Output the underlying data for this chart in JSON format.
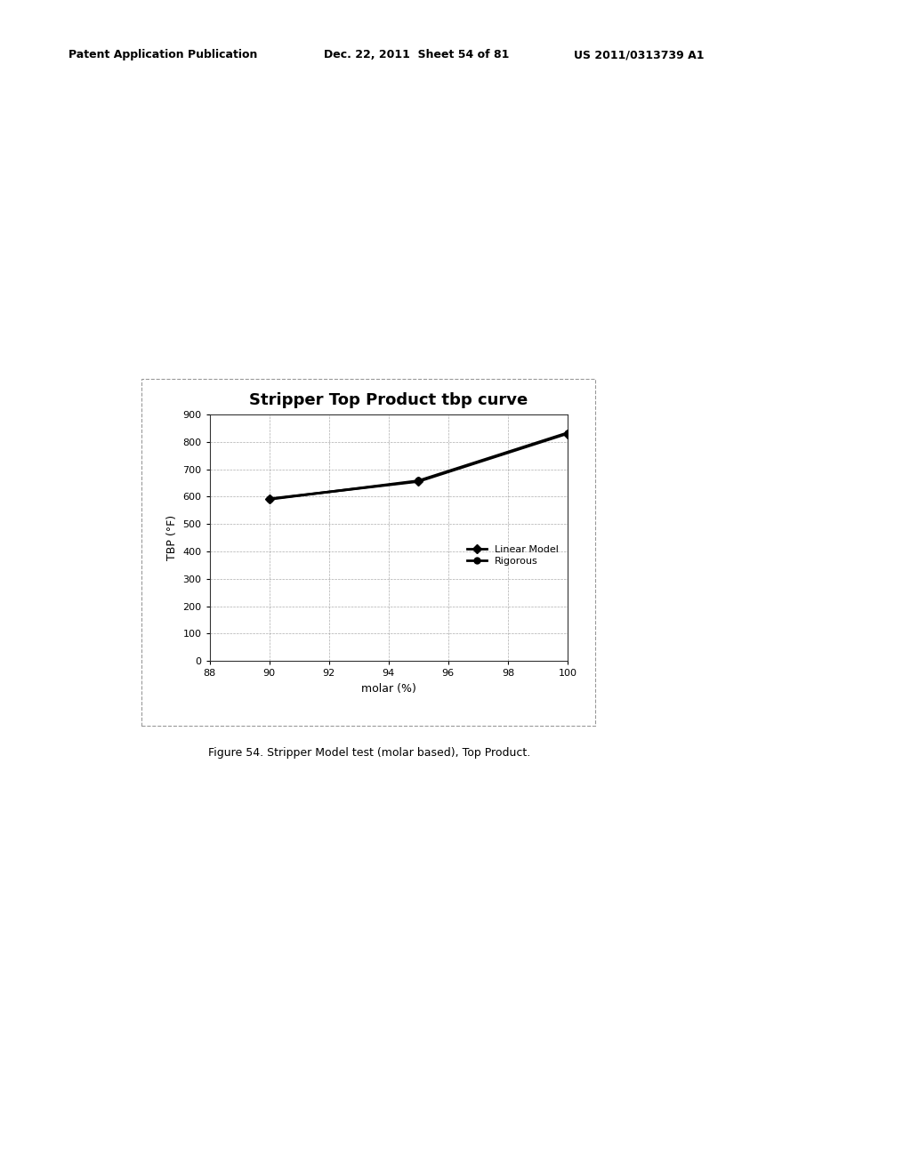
{
  "title": "Stripper Top Product tbp curve",
  "xlabel": "molar (%)",
  "ylabel": "TBP (°F)",
  "xlim": [
    88,
    100
  ],
  "ylim": [
    0,
    900
  ],
  "xticks": [
    88,
    90,
    92,
    94,
    96,
    98,
    100
  ],
  "yticks": [
    0,
    100,
    200,
    300,
    400,
    500,
    600,
    700,
    800,
    900
  ],
  "linear_model": {
    "x": [
      90,
      95,
      100
    ],
    "y": [
      592,
      655,
      830
    ],
    "label": "Linear Model",
    "color": "#000000",
    "marker": "D",
    "linewidth": 2.0,
    "markersize": 5
  },
  "rigorous": {
    "x": [
      90,
      95,
      100
    ],
    "y": [
      590,
      658,
      833
    ],
    "label": "Rigorous",
    "color": "#000000",
    "marker": "o",
    "linewidth": 2.0,
    "markersize": 5
  },
  "header_left": "Patent Application Publication",
  "header_mid": "Dec. 22, 2011  Sheet 54 of 81",
  "header_right": "US 2011/0313739 A1",
  "caption": "Figure 54. Stripper Model test (molar based), Top Product.",
  "background_color": "#ffffff",
  "plot_bg_color": "#ffffff",
  "grid_color": "#999999",
  "title_fontsize": 13,
  "axis_label_fontsize": 9,
  "tick_fontsize": 8,
  "legend_fontsize": 8,
  "header_fontsize": 9,
  "caption_fontsize": 9
}
